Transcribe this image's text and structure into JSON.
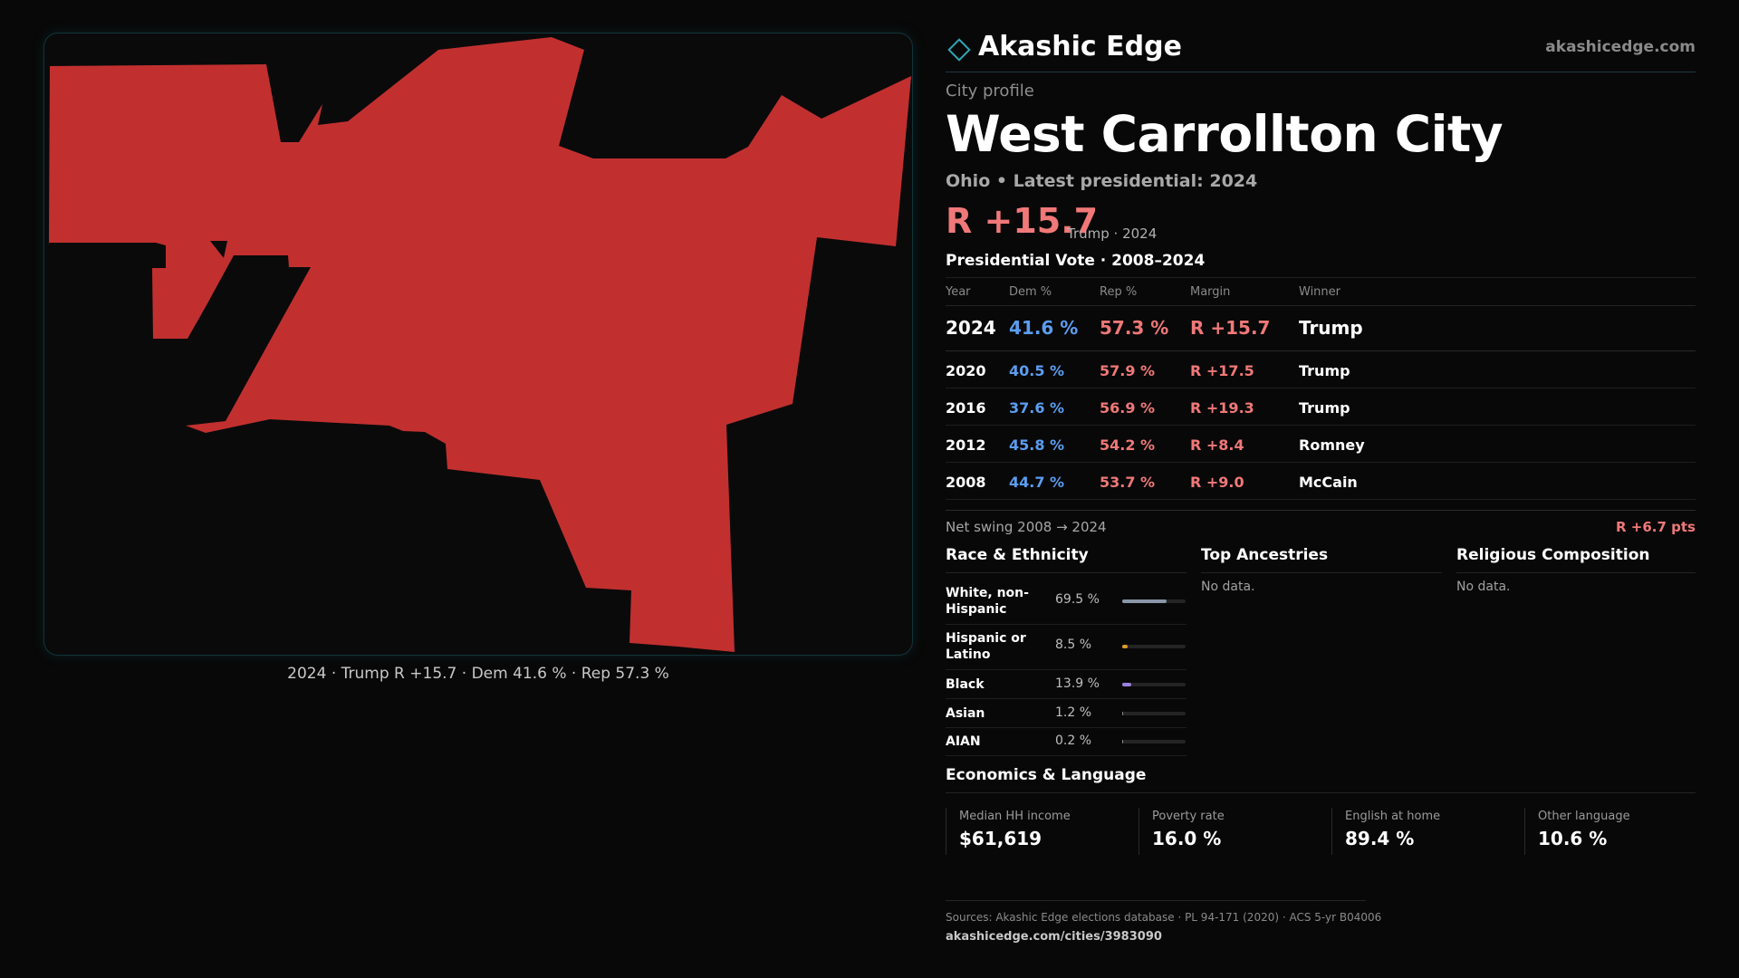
{
  "brand": {
    "name": "Akashic Edge",
    "url": "akashicedge.com",
    "accent": "#2fa4b4"
  },
  "profile": {
    "eyebrow": "City profile",
    "title": "West Carrollton City",
    "subline": "Ohio • Latest presidential: 2024",
    "margin": "R +15.7",
    "margin_note": "Trump · 2024"
  },
  "map": {
    "fill_color": "#c1302f",
    "caption": "2024 · Trump R +15.7 · Dem 41.6 % · Rep 57.3 %"
  },
  "vote": {
    "title": "Presidential Vote · 2008–2024",
    "headers": {
      "year": "Year",
      "dem": "Dem %",
      "rep": "Rep %",
      "margin": "Margin",
      "winner": "Winner"
    },
    "rows": [
      {
        "year": "2024",
        "dem": "41.6 %",
        "rep": "57.3 %",
        "margin": "R +15.7",
        "winner": "Trump"
      },
      {
        "year": "2020",
        "dem": "40.5 %",
        "rep": "57.9 %",
        "margin": "R +17.5",
        "winner": "Trump"
      },
      {
        "year": "2016",
        "dem": "37.6 %",
        "rep": "56.9 %",
        "margin": "R +19.3",
        "winner": "Trump"
      },
      {
        "year": "2012",
        "dem": "45.8 %",
        "rep": "54.2 %",
        "margin": "R +8.4",
        "winner": "Romney"
      },
      {
        "year": "2008",
        "dem": "44.7 %",
        "rep": "53.7 %",
        "margin": "R +9.0",
        "winner": "McCain"
      }
    ],
    "swing_label": "Net swing 2008 → 2024",
    "swing_value": "R +6.7 pts"
  },
  "race": {
    "title": "Race & Ethnicity",
    "rows": [
      {
        "label": "White, non-Hispanic",
        "value": "69.5 %",
        "fraction": 0.695,
        "color": "#8a96a8"
      },
      {
        "label": "Hispanic or Latino",
        "value": "8.5 %",
        "fraction": 0.085,
        "color": "#d99a2b"
      },
      {
        "label": "Black",
        "value": "13.9 %",
        "fraction": 0.139,
        "color": "#9b7fe0"
      },
      {
        "label": "Asian",
        "value": "1.2 %",
        "fraction": 0.012,
        "color": "#8a8a8a"
      },
      {
        "label": "AIAN",
        "value": "0.2 %",
        "fraction": 0.002,
        "color": "#8a8a8a"
      }
    ]
  },
  "ancestries": {
    "title": "Top Ancestries",
    "empty": "No data."
  },
  "religion": {
    "title": "Religious Composition",
    "empty": "No data."
  },
  "economics": {
    "title": "Economics & Language",
    "cells": [
      {
        "label": "Median HH income",
        "value": "$61,619"
      },
      {
        "label": "Poverty rate",
        "value": "16.0 %"
      },
      {
        "label": "English at home",
        "value": "89.4 %"
      },
      {
        "label": "Other language",
        "value": "10.6 %"
      }
    ]
  },
  "sources": {
    "text": "Sources: Akashic Edge elections database · PL 94-171 (2020) · ACS 5-yr B04006",
    "url": "akashicedge.com/cities/3983090"
  }
}
